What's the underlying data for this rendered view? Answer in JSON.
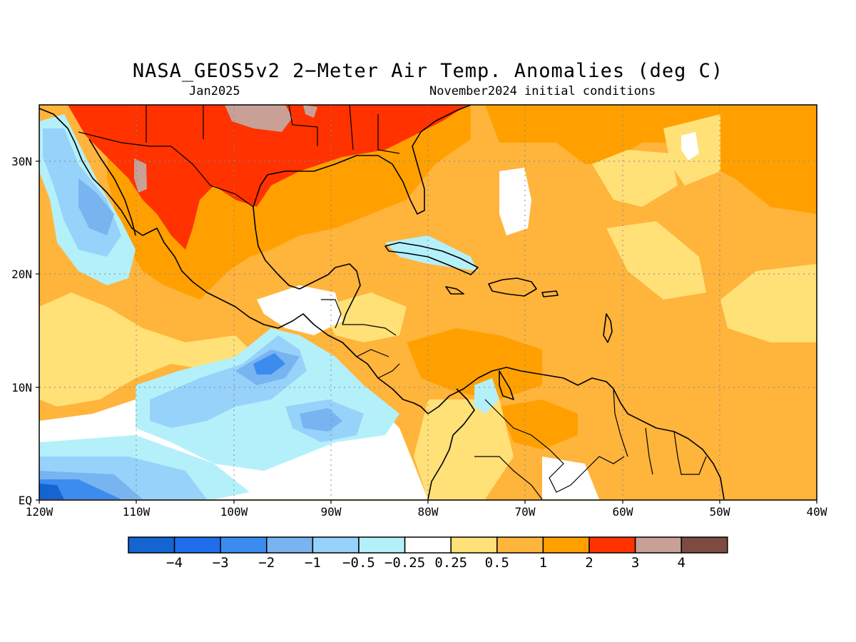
{
  "title": "NASA_GEOS5v2 2−Meter Air Temp. Anomalies (deg C)",
  "subtitle_left": "Jan2025",
  "subtitle_right": "November2024 initial conditions",
  "x_ticks": [
    "120W",
    "110W",
    "100W",
    "90W",
    "80W",
    "70W",
    "60W",
    "50W",
    "40W"
  ],
  "y_ticks": [
    "30N",
    "20N",
    "10N",
    "EQ"
  ],
  "colorbar": {
    "labels": [
      "−4",
      "−3",
      "−2",
      "−1",
      "−0.5",
      "−0.25",
      "0.25",
      "0.5",
      "1",
      "2",
      "3",
      "4"
    ],
    "colors": [
      "#1464d2",
      "#1e6eeb",
      "#3c8cf0",
      "#78b4f0",
      "#96d2fa",
      "#b4f0fa",
      "#ffffff",
      "#ffe178",
      "#ffb43c",
      "#ffa000",
      "#ff3200",
      "#c8a096",
      "#7d4b41"
    ]
  },
  "chart_data": {
    "type": "heatmap",
    "title": "NASA_GEOS5v2 2-Meter Air Temp. Anomalies (deg C)",
    "subtitle": [
      "Jan2025",
      "November2024 initial conditions"
    ],
    "variable": "2-Meter Air Temp. Anomalies",
    "units": "deg C",
    "lon_range": [
      -120,
      -40
    ],
    "lat_range": [
      0,
      35
    ],
    "x_ticks": [
      "120W",
      "110W",
      "100W",
      "90W",
      "80W",
      "70W",
      "60W",
      "50W",
      "40W"
    ],
    "y_ticks": [
      "30N",
      "20N",
      "10N",
      "EQ"
    ],
    "grid": true,
    "contour_levels": [
      -4,
      -3,
      -2,
      -1,
      -0.5,
      -0.25,
      0.25,
      0.5,
      1,
      2,
      3,
      4
    ],
    "regions": [
      {
        "area": "southern United States / northern Mexico",
        "anomaly_range": [
          2,
          3
        ]
      },
      {
        "area": "southern Great Plains patches",
        "anomaly_range": [
          3,
          4
        ]
      },
      {
        "area": "Gulf of Mexico / western Atlantic",
        "anomaly_range": [
          1,
          2
        ]
      },
      {
        "area": "central tropical Atlantic",
        "anomaly_range": [
          0.5,
          1
        ]
      },
      {
        "area": "Caribbean Sea",
        "anomaly_range": [
          0.5,
          2
        ]
      },
      {
        "area": "off Baja California",
        "anomaly_range": [
          -1,
          -0.25
        ]
      },
      {
        "area": "eastern tropical Pacific near 5-15N",
        "anomaly_range": [
          -2,
          -0.5
        ]
      },
      {
        "area": "equatorial Pacific near 115-120W",
        "anomaly_range": [
          -4,
          -2
        ]
      }
    ]
  }
}
